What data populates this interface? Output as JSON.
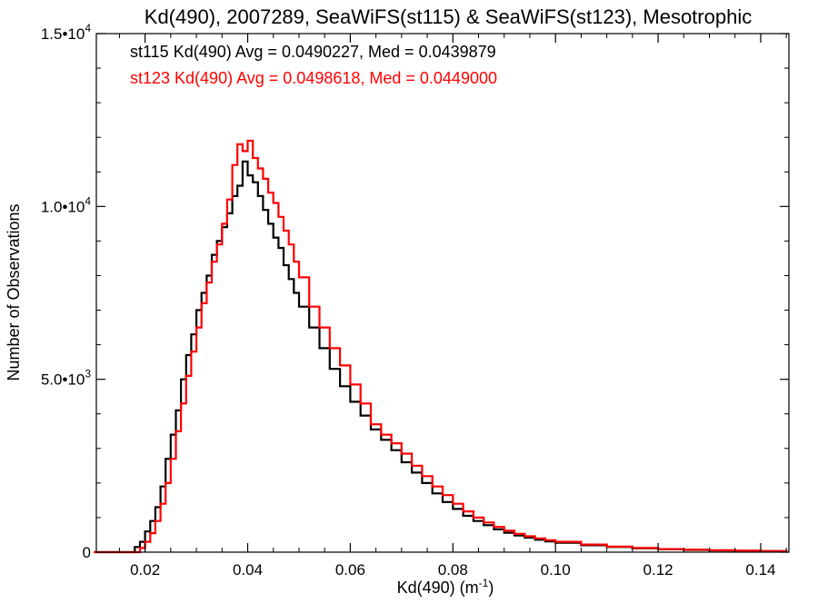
{
  "chart_data": {
    "type": "histogram-step",
    "title": "Kd(490), 2007289, SeaWiFS(st115) & SeaWiFS(st123), Mesotrophic",
    "xlabel": "Kd(490) (m",
    "xlabel_sup": "-1",
    "xlabel_close": ")",
    "ylabel": "Number of Observations",
    "xlim": [
      0.0105,
      0.1455
    ],
    "ylim": [
      0,
      15000
    ],
    "x_ticks": [
      {
        "value": 0.02,
        "label": "0.02"
      },
      {
        "value": 0.04,
        "label": "0.04"
      },
      {
        "value": 0.06,
        "label": "0.06"
      },
      {
        "value": 0.08,
        "label": "0.08"
      },
      {
        "value": 0.1,
        "label": "0.10"
      },
      {
        "value": 0.12,
        "label": "0.12"
      },
      {
        "value": 0.14,
        "label": "0.14"
      }
    ],
    "y_ticks": [
      {
        "value": 0,
        "mant": "0",
        "exp": ""
      },
      {
        "value": 5000,
        "mant": "5.0•10",
        "exp": "3"
      },
      {
        "value": 10000,
        "mant": "1.0•10",
        "exp": "4"
      },
      {
        "value": 15000,
        "mant": "1.5•10",
        "exp": "4"
      }
    ],
    "annotations": [
      {
        "text": "st115 Kd(490) Avg = 0.0490227, Med = 0.0439879",
        "color": "#000000"
      },
      {
        "text": "st123 Kd(490) Avg = 0.0498618, Med = 0.0449000",
        "color": "#ff0000"
      }
    ],
    "series": [
      {
        "color": "#000000",
        "points": [
          [
            0.01,
            0
          ],
          [
            0.016,
            0
          ],
          [
            0.018,
            150
          ],
          [
            0.019,
            300
          ],
          [
            0.02,
            600
          ],
          [
            0.021,
            900
          ],
          [
            0.022,
            1300
          ],
          [
            0.023,
            1900
          ],
          [
            0.024,
            2700
          ],
          [
            0.025,
            3400
          ],
          [
            0.026,
            4100
          ],
          [
            0.027,
            5000
          ],
          [
            0.028,
            5700
          ],
          [
            0.029,
            6300
          ],
          [
            0.03,
            7000
          ],
          [
            0.031,
            7500
          ],
          [
            0.032,
            8000
          ],
          [
            0.033,
            8600
          ],
          [
            0.034,
            9000
          ],
          [
            0.035,
            9400
          ],
          [
            0.036,
            9800
          ],
          [
            0.037,
            10300
          ],
          [
            0.038,
            10600
          ],
          [
            0.039,
            11300
          ],
          [
            0.04,
            10900
          ],
          [
            0.041,
            10700
          ],
          [
            0.042,
            10300
          ],
          [
            0.043,
            9900
          ],
          [
            0.044,
            9500
          ],
          [
            0.045,
            9100
          ],
          [
            0.046,
            8800
          ],
          [
            0.047,
            8300
          ],
          [
            0.048,
            7900
          ],
          [
            0.049,
            7500
          ],
          [
            0.05,
            7100
          ],
          [
            0.052,
            6500
          ],
          [
            0.054,
            5900
          ],
          [
            0.056,
            5300
          ],
          [
            0.058,
            4800
          ],
          [
            0.06,
            4350
          ],
          [
            0.062,
            3950
          ],
          [
            0.064,
            3550
          ],
          [
            0.066,
            3250
          ],
          [
            0.068,
            2950
          ],
          [
            0.07,
            2600
          ],
          [
            0.072,
            2300
          ],
          [
            0.074,
            2000
          ],
          [
            0.076,
            1700
          ],
          [
            0.078,
            1450
          ],
          [
            0.08,
            1250
          ],
          [
            0.082,
            1050
          ],
          [
            0.084,
            900
          ],
          [
            0.086,
            780
          ],
          [
            0.088,
            660
          ],
          [
            0.09,
            560
          ],
          [
            0.092,
            480
          ],
          [
            0.094,
            420
          ],
          [
            0.096,
            360
          ],
          [
            0.098,
            310
          ],
          [
            0.1,
            270
          ],
          [
            0.105,
            200
          ],
          [
            0.11,
            150
          ],
          [
            0.115,
            110
          ],
          [
            0.12,
            85
          ],
          [
            0.125,
            65
          ],
          [
            0.13,
            50
          ],
          [
            0.135,
            40
          ],
          [
            0.14,
            30
          ],
          [
            0.145,
            25
          ]
        ]
      },
      {
        "color": "#ff0000",
        "points": [
          [
            0.01,
            0
          ],
          [
            0.017,
            0
          ],
          [
            0.019,
            120
          ],
          [
            0.02,
            300
          ],
          [
            0.021,
            550
          ],
          [
            0.022,
            900
          ],
          [
            0.023,
            1400
          ],
          [
            0.024,
            2000
          ],
          [
            0.025,
            2700
          ],
          [
            0.026,
            3500
          ],
          [
            0.027,
            4300
          ],
          [
            0.028,
            5100
          ],
          [
            0.029,
            5800
          ],
          [
            0.03,
            6500
          ],
          [
            0.031,
            7200
          ],
          [
            0.032,
            7800
          ],
          [
            0.033,
            8400
          ],
          [
            0.034,
            8900
          ],
          [
            0.035,
            9500
          ],
          [
            0.036,
            10200
          ],
          [
            0.037,
            11200
          ],
          [
            0.038,
            11800
          ],
          [
            0.039,
            11600
          ],
          [
            0.04,
            11900
          ],
          [
            0.041,
            11400
          ],
          [
            0.042,
            11100
          ],
          [
            0.043,
            10800
          ],
          [
            0.044,
            10400
          ],
          [
            0.045,
            10100
          ],
          [
            0.046,
            9700
          ],
          [
            0.047,
            9300
          ],
          [
            0.048,
            8900
          ],
          [
            0.049,
            8400
          ],
          [
            0.05,
            7950
          ],
          [
            0.052,
            7100
          ],
          [
            0.054,
            6500
          ],
          [
            0.056,
            5900
          ],
          [
            0.058,
            5400
          ],
          [
            0.06,
            4850
          ],
          [
            0.062,
            4300
          ],
          [
            0.064,
            3700
          ],
          [
            0.066,
            3400
          ],
          [
            0.068,
            3150
          ],
          [
            0.07,
            2850
          ],
          [
            0.072,
            2500
          ],
          [
            0.074,
            2200
          ],
          [
            0.076,
            1900
          ],
          [
            0.078,
            1650
          ],
          [
            0.08,
            1400
          ],
          [
            0.082,
            1180
          ],
          [
            0.084,
            1000
          ],
          [
            0.086,
            860
          ],
          [
            0.088,
            730
          ],
          [
            0.09,
            620
          ],
          [
            0.092,
            530
          ],
          [
            0.094,
            460
          ],
          [
            0.096,
            400
          ],
          [
            0.098,
            345
          ],
          [
            0.1,
            300
          ],
          [
            0.105,
            220
          ],
          [
            0.11,
            160
          ],
          [
            0.115,
            120
          ],
          [
            0.12,
            90
          ],
          [
            0.125,
            70
          ],
          [
            0.13,
            55
          ],
          [
            0.135,
            42
          ],
          [
            0.14,
            32
          ],
          [
            0.145,
            26
          ]
        ]
      }
    ]
  }
}
